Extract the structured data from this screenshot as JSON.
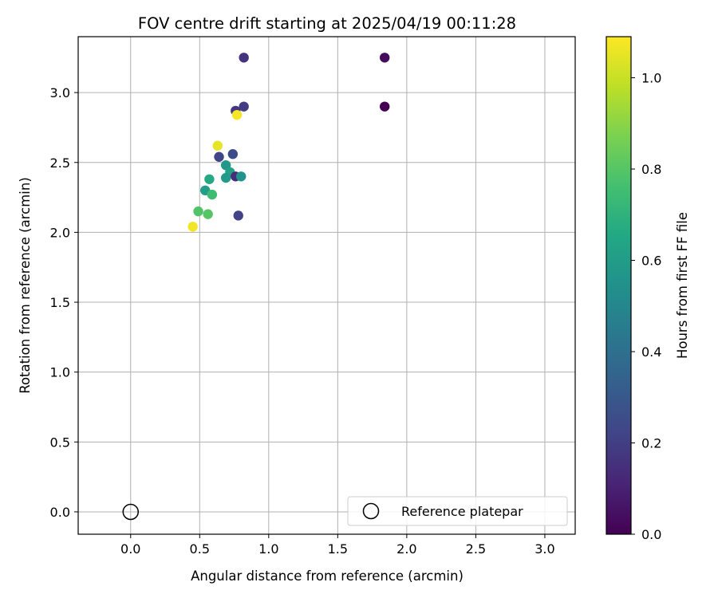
{
  "chart_data": {
    "type": "scatter",
    "title": "FOV centre drift starting at 2025/04/19 00:11:28",
    "xlabel": "Angular distance from reference (arcmin)",
    "ylabel": "Rotation from reference (arcmin)",
    "xlim": [
      -0.38,
      3.22
    ],
    "ylim": [
      -0.16,
      3.4
    ],
    "xticks": [
      "0.0",
      "0.5",
      "1.0",
      "1.5",
      "2.0",
      "2.5",
      "3.0"
    ],
    "xtick_values": [
      0,
      0.5,
      1.0,
      1.5,
      2.0,
      2.5,
      3.0
    ],
    "yticks": [
      "0.0",
      "0.5",
      "1.0",
      "1.5",
      "2.0",
      "2.5",
      "3.0"
    ],
    "ytick_values": [
      0,
      0.5,
      1.0,
      1.5,
      2.0,
      2.5,
      3.0
    ],
    "grid": true,
    "colormap": "viridis",
    "colorbar": {
      "label": "Hours from first FF file",
      "range": [
        0,
        1.09
      ],
      "ticks": [
        "0.0",
        "0.2",
        "0.4",
        "0.6",
        "0.8",
        "1.0"
      ],
      "tick_values": [
        0,
        0.2,
        0.4,
        0.6,
        0.8,
        1.0
      ]
    },
    "points": [
      {
        "x": 1.84,
        "y": 2.9,
        "c": 0.0
      },
      {
        "x": 1.84,
        "y": 3.25,
        "c": 0.03
      },
      {
        "x": 0.82,
        "y": 3.25,
        "c": 0.16
      },
      {
        "x": 0.82,
        "y": 2.9,
        "c": 0.19
      },
      {
        "x": 0.76,
        "y": 2.87,
        "c": 0.17
      },
      {
        "x": 0.77,
        "y": 2.84,
        "c": 1.08
      },
      {
        "x": 0.63,
        "y": 2.62,
        "c": 1.05
      },
      {
        "x": 0.64,
        "y": 2.54,
        "c": 0.22
      },
      {
        "x": 0.74,
        "y": 2.56,
        "c": 0.25
      },
      {
        "x": 0.69,
        "y": 2.48,
        "c": 0.58
      },
      {
        "x": 0.72,
        "y": 2.43,
        "c": 0.62
      },
      {
        "x": 0.76,
        "y": 2.4,
        "c": 0.14
      },
      {
        "x": 0.69,
        "y": 2.39,
        "c": 0.59
      },
      {
        "x": 0.8,
        "y": 2.4,
        "c": 0.55
      },
      {
        "x": 0.57,
        "y": 2.38,
        "c": 0.66
      },
      {
        "x": 0.54,
        "y": 2.3,
        "c": 0.6
      },
      {
        "x": 0.59,
        "y": 2.27,
        "c": 0.75
      },
      {
        "x": 0.49,
        "y": 2.15,
        "c": 0.79
      },
      {
        "x": 0.56,
        "y": 2.13,
        "c": 0.8
      },
      {
        "x": 0.78,
        "y": 2.12,
        "c": 0.21
      },
      {
        "x": 0.45,
        "y": 2.04,
        "c": 1.07
      }
    ],
    "reference": {
      "x": 0.0,
      "y": 0.0
    },
    "legend": {
      "location": "lower-right",
      "entries": [
        "Reference platepar"
      ]
    }
  }
}
